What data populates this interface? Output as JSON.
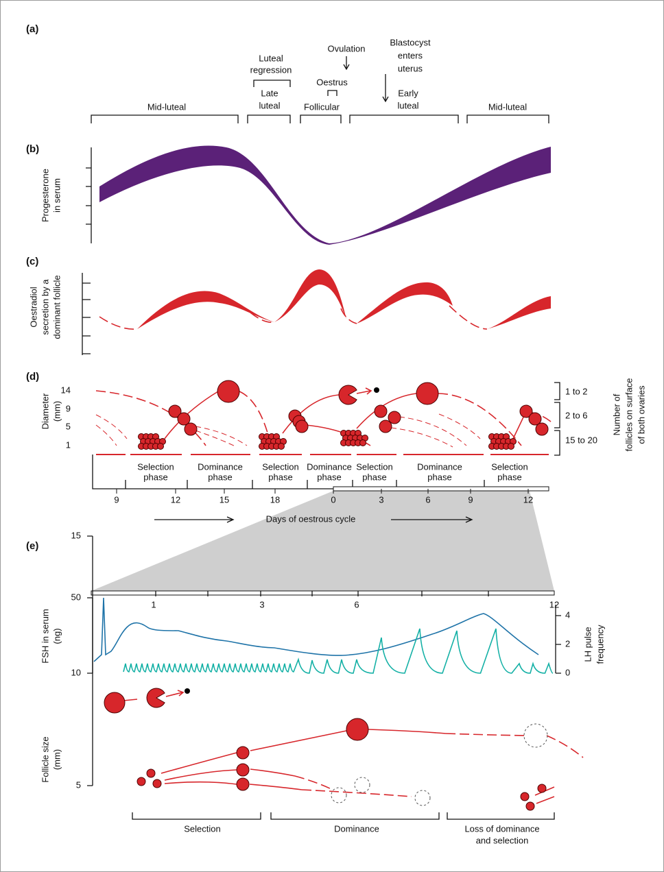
{
  "panel_a": {
    "label": "(a)",
    "mid_luteal_1": "Mid-luteal",
    "luteal_regression": [
      "Luteal",
      "regression"
    ],
    "late_luteal": [
      "Late",
      "luteal"
    ],
    "ovulation": "Ovulation",
    "oestrus": "Oestrus",
    "follicular": "Follicular",
    "blastocyst": [
      "Blastocyst",
      "enters",
      "uterus"
    ],
    "early_luteal": [
      "Early",
      "luteal"
    ],
    "mid_luteal_2": "Mid-luteal"
  },
  "panel_b": {
    "label": "(b)",
    "y_label": [
      "Progesterone",
      "in serum"
    ]
  },
  "panel_c": {
    "label": "(c)",
    "y_label": [
      "Oestradiol",
      "secretion by a",
      "dominant follicle"
    ]
  },
  "panel_d": {
    "label": "(d)",
    "y_label": [
      "Diameter",
      "(mm)"
    ],
    "y_ticks": [
      14,
      9,
      5,
      1
    ],
    "count_labels": [
      "1 to 2",
      "2 to 6",
      "15 to 20"
    ],
    "right_label": [
      "Number of",
      "follicles on surface",
      "of both ovaries"
    ],
    "phases": [
      [
        "Selection",
        "phase"
      ],
      [
        "Dominance",
        "phase"
      ],
      [
        "Selection",
        "phase"
      ],
      [
        "Dominance",
        "phase"
      ],
      [
        "Selection",
        "phase"
      ],
      [
        "Dominance",
        "phase"
      ],
      [
        "Selection",
        "phase"
      ]
    ],
    "day_ticks": [
      9,
      12,
      15,
      18,
      0,
      3,
      6,
      9,
      12
    ],
    "x_label": "Days of oestrous cycle"
  },
  "panel_e": {
    "label": "(e)",
    "day_ticks": [
      1,
      3,
      6,
      12
    ],
    "fsh_label": [
      "FSH in serum",
      "(ng)"
    ],
    "fsh_ticks": [
      50,
      10
    ],
    "lh_label": [
      "LH pulse",
      "frequency"
    ],
    "lh_ticks": [
      4,
      2,
      0
    ],
    "size_label": [
      "Follicle size",
      "(mm)"
    ],
    "size_ticks": [
      15,
      5
    ],
    "selection": "Selection",
    "dominance": "Dominance",
    "loss": [
      "Loss of dominance",
      "and selection"
    ]
  }
}
